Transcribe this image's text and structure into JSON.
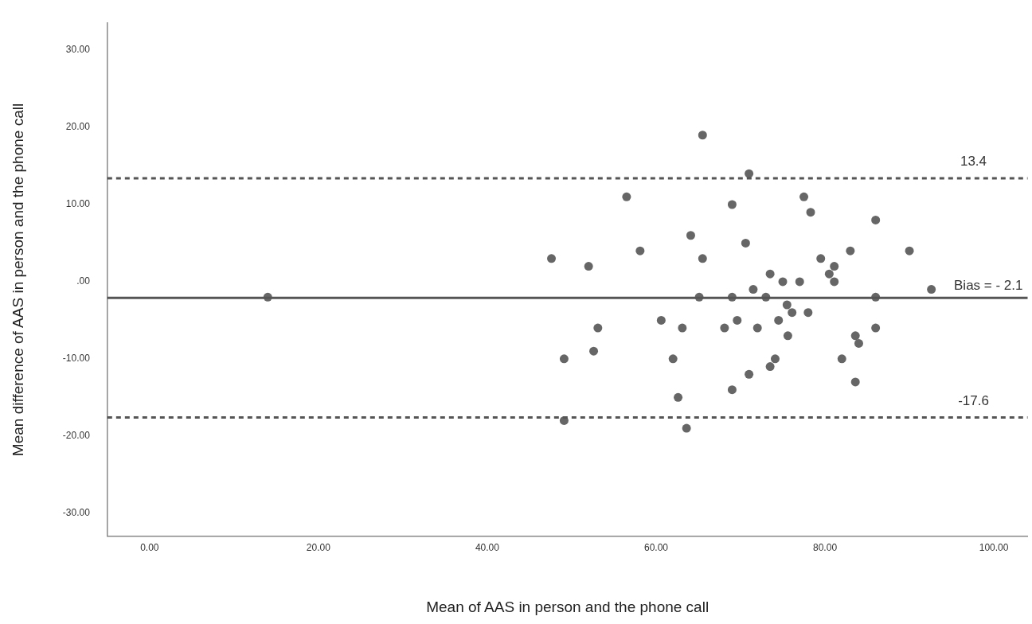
{
  "chart_data": {
    "type": "scatter",
    "xlabel": "Mean of AAS in person and the phone call",
    "ylabel": "Mean difference of AAS in person and the phone call",
    "x": [
      14,
      47.6,
      52,
      53.1,
      52.6,
      49.1,
      49.1,
      65.5,
      71,
      56.5,
      69,
      77.5,
      78.3,
      64.1,
      58.1,
      70.6,
      65.5,
      73.5,
      75,
      77,
      71.5,
      65.1,
      69,
      73,
      75.5,
      76.1,
      78,
      60.6,
      69.6,
      74.5,
      63.1,
      68.1,
      72,
      75.6,
      62,
      74.1,
      73.5,
      71,
      69,
      62.6,
      63.6,
      86,
      83,
      90,
      79.5,
      81.1,
      80.5,
      81.1,
      92.6,
      86,
      86,
      83.6,
      84,
      82,
      83.6
    ],
    "values": [
      -2,
      3,
      2,
      -6,
      -9,
      -10,
      -18,
      19,
      14,
      11,
      10,
      11,
      9,
      6,
      4,
      5,
      3,
      1,
      0,
      0,
      -1,
      -2,
      -2,
      -2,
      -3,
      -4,
      -4,
      -5,
      -5,
      -5,
      -6,
      -6,
      -6,
      -7,
      -10,
      -10,
      -11,
      -12,
      -14,
      -15,
      -19,
      8,
      4,
      4,
      3,
      2,
      1,
      0,
      -1,
      -2,
      -6,
      -7,
      -8,
      -10,
      -13
    ],
    "color": "#666666",
    "marker": "circle",
    "grid": false,
    "legend": false,
    "xlim": [
      -5,
      104
    ],
    "xticks": [
      {
        "value": 0,
        "label": "0.00"
      },
      {
        "value": 20,
        "label": "20.00"
      },
      {
        "value": 40,
        "label": "40.00"
      },
      {
        "value": 60,
        "label": "60.00"
      },
      {
        "value": 80,
        "label": "80.00"
      },
      {
        "value": 100,
        "label": "100.00"
      }
    ],
    "ylim": [
      -33,
      33.5
    ],
    "yticks": [
      {
        "value": -30,
        "label": "-30.00"
      },
      {
        "value": -20,
        "label": "-20.00"
      },
      {
        "value": -10,
        "label": "-10.00"
      },
      {
        "value": 0,
        "label": ".00"
      },
      {
        "value": 10,
        "label": "10.00"
      },
      {
        "value": 20,
        "label": "20.00"
      },
      {
        "value": 30,
        "label": "30.00"
      }
    ],
    "ref_lines": [
      {
        "axis": "y",
        "value": 13.4,
        "label": "13.4",
        "line_style": "dashed",
        "color": "#555555"
      },
      {
        "axis": "y",
        "value": -2.1,
        "label": "Bias = - 2.1",
        "line_style": "solid",
        "color": "#555555"
      },
      {
        "axis": "y",
        "value": -17.6,
        "label": "-17.6",
        "line_style": "dashed",
        "color": "#555555"
      }
    ]
  }
}
